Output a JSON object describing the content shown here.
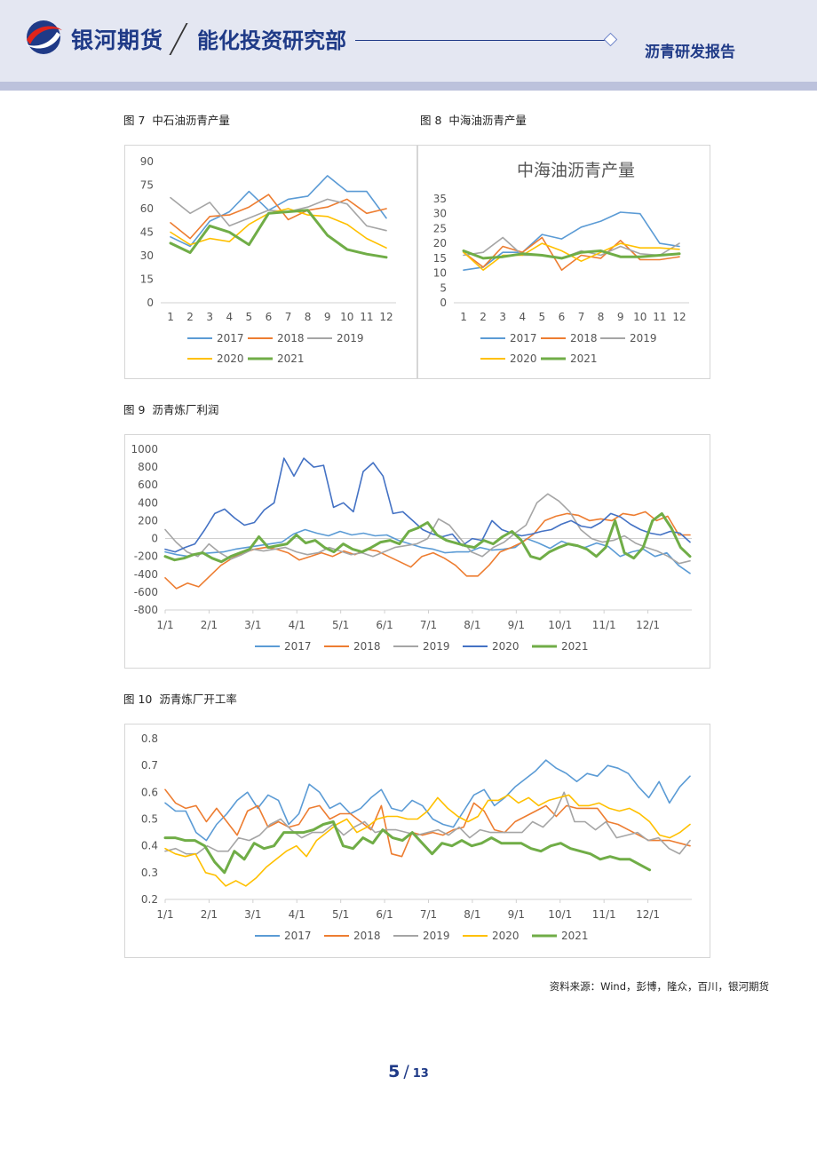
{
  "header": {
    "company": "银河期货",
    "department": "能化投资研究部",
    "report_type": "沥青研发报告"
  },
  "colors": {
    "s2017": "#5b9bd5",
    "s2018": "#ed7d31",
    "s2019": "#a5a5a5",
    "s2020": "#ffc000",
    "s2021": "#70ad47",
    "s2020b": "#4472c4",
    "brand": "#1f3a87"
  },
  "figures": {
    "f7": {
      "caption_prefix": "图 7",
      "caption_title": "中石油沥青产量"
    },
    "f8": {
      "caption_prefix": "图 8",
      "caption_title": "中海油沥青产量"
    },
    "f9": {
      "caption_prefix": "图 9",
      "caption_title": "沥青炼厂利润"
    },
    "f10": {
      "caption_prefix": "图 10",
      "caption_title": "沥青炼厂开工率"
    }
  },
  "chart_data": [
    {
      "id": "f7",
      "type": "line",
      "title": "",
      "x": [
        1,
        2,
        3,
        4,
        5,
        6,
        7,
        8,
        9,
        10,
        11,
        12
      ],
      "ylim": [
        0,
        90
      ],
      "yticks": [
        0,
        15,
        30,
        45,
        60,
        75,
        90
      ],
      "series": [
        {
          "name": "2017",
          "values": [
            42,
            36,
            52,
            58,
            71,
            59,
            66,
            68,
            81,
            71,
            71,
            54
          ]
        },
        {
          "name": "2018",
          "values": [
            51,
            41,
            55,
            56,
            61,
            69,
            53,
            59,
            61,
            66,
            57,
            60
          ]
        },
        {
          "name": "2019",
          "values": [
            67,
            57,
            64,
            49,
            54,
            59,
            58,
            61,
            66,
            63,
            49,
            46
          ]
        },
        {
          "name": "2020",
          "values": [
            45,
            37,
            41,
            39,
            50,
            57,
            60,
            56,
            55,
            50,
            41,
            35
          ]
        },
        {
          "name": "2021",
          "values": [
            38,
            32,
            49,
            45,
            37,
            57,
            58,
            59,
            43,
            34,
            31,
            29
          ]
        }
      ]
    },
    {
      "id": "f8",
      "type": "line",
      "title": "中海油沥青产量",
      "x": [
        1,
        2,
        3,
        4,
        5,
        6,
        7,
        8,
        9,
        10,
        11,
        12
      ],
      "ylim": [
        0,
        35
      ],
      "yticks": [
        0,
        5,
        10,
        15,
        20,
        25,
        30,
        35
      ],
      "series": [
        {
          "name": "2017",
          "values": [
            11,
            12,
            17,
            17,
            23,
            21.5,
            25.5,
            27.5,
            30.5,
            30,
            20,
            19
          ]
        },
        {
          "name": "2018",
          "values": [
            17,
            12,
            19,
            17,
            22,
            11,
            16,
            15,
            21,
            14.5,
            14.5,
            15.5
          ]
        },
        {
          "name": "2019",
          "values": [
            16,
            17,
            22,
            16,
            16,
            15,
            17.5,
            16,
            19,
            16.5,
            16,
            20
          ]
        },
        {
          "name": "2020",
          "values": [
            17,
            11,
            16,
            16,
            20,
            17.5,
            14,
            17,
            20,
            18.5,
            18.5,
            18
          ]
        },
        {
          "name": "2021",
          "values": [
            17.5,
            15,
            15.5,
            16.5,
            16,
            15,
            17,
            17.5,
            15.5,
            15.5,
            16,
            16.5
          ]
        }
      ]
    },
    {
      "id": "f9",
      "type": "line",
      "title": "",
      "xticks": [
        "1/1",
        "2/1",
        "3/1",
        "4/1",
        "5/1",
        "6/1",
        "7/1",
        "8/1",
        "9/1",
        "10/1",
        "11/1",
        "12/1"
      ],
      "ylim": [
        -800,
        1000
      ],
      "yticks": [
        -800,
        -600,
        -400,
        -200,
        0,
        200,
        400,
        600,
        800,
        1000
      ],
      "note": "values approximate, one point per ~half month",
      "series": [
        {
          "name": "2017",
          "values": [
            -150,
            -180,
            -200,
            -170,
            -160,
            -150,
            -120,
            -100,
            -80,
            -60,
            -40,
            50,
            100,
            60,
            30,
            80,
            40,
            60,
            30,
            40,
            -20,
            -60,
            -100,
            -120,
            -160,
            -150,
            -150,
            -100,
            -130,
            -120,
            -100,
            0,
            -50,
            -110,
            -30,
            -80,
            -100,
            -50,
            -90,
            -200,
            -150,
            -120,
            -200,
            -160,
            -300,
            -390
          ]
        },
        {
          "name": "2018",
          "values": [
            -440,
            -560,
            -500,
            -540,
            -420,
            -300,
            -220,
            -160,
            -120,
            -100,
            -120,
            -160,
            -240,
            -200,
            -160,
            -200,
            -140,
            -180,
            -120,
            -140,
            -200,
            -260,
            -320,
            -200,
            -160,
            -220,
            -300,
            -420,
            -420,
            -300,
            -150,
            -100,
            -40,
            50,
            200,
            250,
            280,
            260,
            200,
            220,
            200,
            280,
            260,
            300,
            200,
            250,
            40,
            40
          ]
        },
        {
          "name": "2019",
          "values": [
            100,
            -40,
            -150,
            -200,
            -60,
            -160,
            -230,
            -180,
            -120,
            -140,
            -120,
            -100,
            -150,
            -180,
            -160,
            -100,
            -140,
            -180,
            -160,
            -200,
            -150,
            -100,
            -80,
            -60,
            0,
            220,
            150,
            0,
            -150,
            -200,
            -100,
            -40,
            60,
            150,
            400,
            500,
            420,
            300,
            100,
            0,
            -40,
            -20,
            30,
            -50,
            -100,
            -140,
            -200,
            -280,
            -250
          ]
        },
        {
          "name": "2020",
          "values": [
            -120,
            -150,
            -100,
            -60,
            100,
            280,
            330,
            230,
            150,
            180,
            320,
            400,
            900,
            700,
            900,
            800,
            820,
            350,
            400,
            300,
            750,
            850,
            700,
            280,
            300,
            200,
            100,
            50,
            20,
            50,
            -80,
            0,
            -20,
            200,
            100,
            60,
            30,
            50,
            80,
            100,
            160,
            200,
            140,
            120,
            180,
            280,
            240,
            160,
            100,
            60,
            40,
            80,
            60,
            -40
          ]
        },
        {
          "name": "2021",
          "values": [
            -200,
            -240,
            -220,
            -180,
            -160,
            -220,
            -260,
            -200,
            -160,
            -120,
            20,
            -100,
            -80,
            -60,
            40,
            -50,
            -20,
            -100,
            -150,
            -60,
            -120,
            -150,
            -100,
            -40,
            -20,
            -60,
            80,
            120,
            180,
            40,
            -20,
            -50,
            -80,
            -100,
            -20,
            -60,
            20,
            80,
            -20,
            -200,
            -230,
            -150,
            -100,
            -60,
            -80,
            -120,
            -200,
            -100,
            200,
            -160,
            -220,
            -100,
            200,
            280,
            120,
            -100,
            -200
          ]
        }
      ]
    },
    {
      "id": "f10",
      "type": "line",
      "title": "",
      "xticks": [
        "1/1",
        "2/1",
        "3/1",
        "4/1",
        "5/1",
        "6/1",
        "7/1",
        "8/1",
        "9/1",
        "10/1",
        "11/1",
        "12/1"
      ],
      "ylim": [
        0.2,
        0.8
      ],
      "yticks": [
        0.2,
        0.3,
        0.4,
        0.5,
        0.6,
        0.7,
        0.8
      ],
      "note": "values approximate, weekly",
      "series": [
        {
          "name": "2017",
          "values": [
            0.56,
            0.53,
            0.53,
            0.45,
            0.42,
            0.48,
            0.52,
            0.57,
            0.6,
            0.54,
            0.59,
            0.57,
            0.48,
            0.52,
            0.63,
            0.6,
            0.54,
            0.56,
            0.52,
            0.54,
            0.58,
            0.61,
            0.54,
            0.53,
            0.57,
            0.55,
            0.5,
            0.48,
            0.47,
            0.53,
            0.59,
            0.61,
            0.55,
            0.58,
            0.62,
            0.65,
            0.68,
            0.72,
            0.69,
            0.67,
            0.64,
            0.67,
            0.66,
            0.7,
            0.69,
            0.67,
            0.62,
            0.58,
            0.64,
            0.56,
            0.62,
            0.66
          ]
        },
        {
          "name": "2018",
          "values": [
            0.61,
            0.56,
            0.54,
            0.55,
            0.49,
            0.54,
            0.49,
            0.44,
            0.53,
            0.55,
            0.47,
            0.49,
            0.47,
            0.48,
            0.54,
            0.55,
            0.5,
            0.52,
            0.52,
            0.49,
            0.46,
            0.55,
            0.37,
            0.36,
            0.45,
            0.44,
            0.45,
            0.44,
            0.46,
            0.47,
            0.56,
            0.53,
            0.46,
            0.45,
            0.49,
            0.51,
            0.53,
            0.55,
            0.51,
            0.55,
            0.54,
            0.54,
            0.54,
            0.49,
            0.48,
            0.46,
            0.44,
            0.42,
            0.42,
            0.42,
            0.41,
            0.4
          ]
        },
        {
          "name": "2019",
          "values": [
            0.38,
            0.39,
            0.37,
            0.37,
            0.4,
            0.38,
            0.38,
            0.43,
            0.42,
            0.44,
            0.48,
            0.5,
            0.46,
            0.43,
            0.45,
            0.45,
            0.48,
            0.44,
            0.47,
            0.49,
            0.45,
            0.46,
            0.46,
            0.45,
            0.44,
            0.45,
            0.46,
            0.44,
            0.47,
            0.43,
            0.46,
            0.45,
            0.45,
            0.45,
            0.45,
            0.49,
            0.47,
            0.51,
            0.6,
            0.49,
            0.49,
            0.46,
            0.49,
            0.43,
            0.44,
            0.45,
            0.42,
            0.43,
            0.39,
            0.37,
            0.42
          ]
        },
        {
          "name": "2020",
          "values": [
            0.39,
            0.37,
            0.36,
            0.37,
            0.3,
            0.29,
            0.25,
            0.27,
            0.25,
            0.28,
            0.32,
            0.35,
            0.38,
            0.4,
            0.36,
            0.42,
            0.45,
            0.48,
            0.5,
            0.45,
            0.47,
            0.5,
            0.51,
            0.51,
            0.5,
            0.5,
            0.53,
            0.58,
            0.54,
            0.51,
            0.49,
            0.51,
            0.57,
            0.57,
            0.59,
            0.56,
            0.58,
            0.55,
            0.57,
            0.58,
            0.59,
            0.55,
            0.55,
            0.56,
            0.54,
            0.53,
            0.54,
            0.52,
            0.49,
            0.44,
            0.43,
            0.45,
            0.48
          ]
        },
        {
          "name": "2021",
          "values": [
            0.43,
            0.43,
            0.42,
            0.42,
            0.4,
            0.34,
            0.3,
            0.38,
            0.35,
            0.41,
            0.39,
            0.4,
            0.45,
            0.45,
            0.45,
            0.46,
            0.48,
            0.49,
            0.4,
            0.39,
            0.43,
            0.41,
            0.46,
            0.43,
            0.42,
            0.45,
            0.41,
            0.37,
            0.41,
            0.4,
            0.42,
            0.4,
            0.41,
            0.43,
            0.41,
            0.41,
            0.41,
            0.39,
            0.38,
            0.4,
            0.41,
            0.39,
            0.38,
            0.37,
            0.35,
            0.36,
            0.35,
            0.35,
            0.33,
            0.31
          ]
        }
      ]
    }
  ],
  "footer": {
    "source": "资料来源：Wind，彭博，隆众，百川，银河期货",
    "page_current": "5",
    "page_total": "13"
  }
}
